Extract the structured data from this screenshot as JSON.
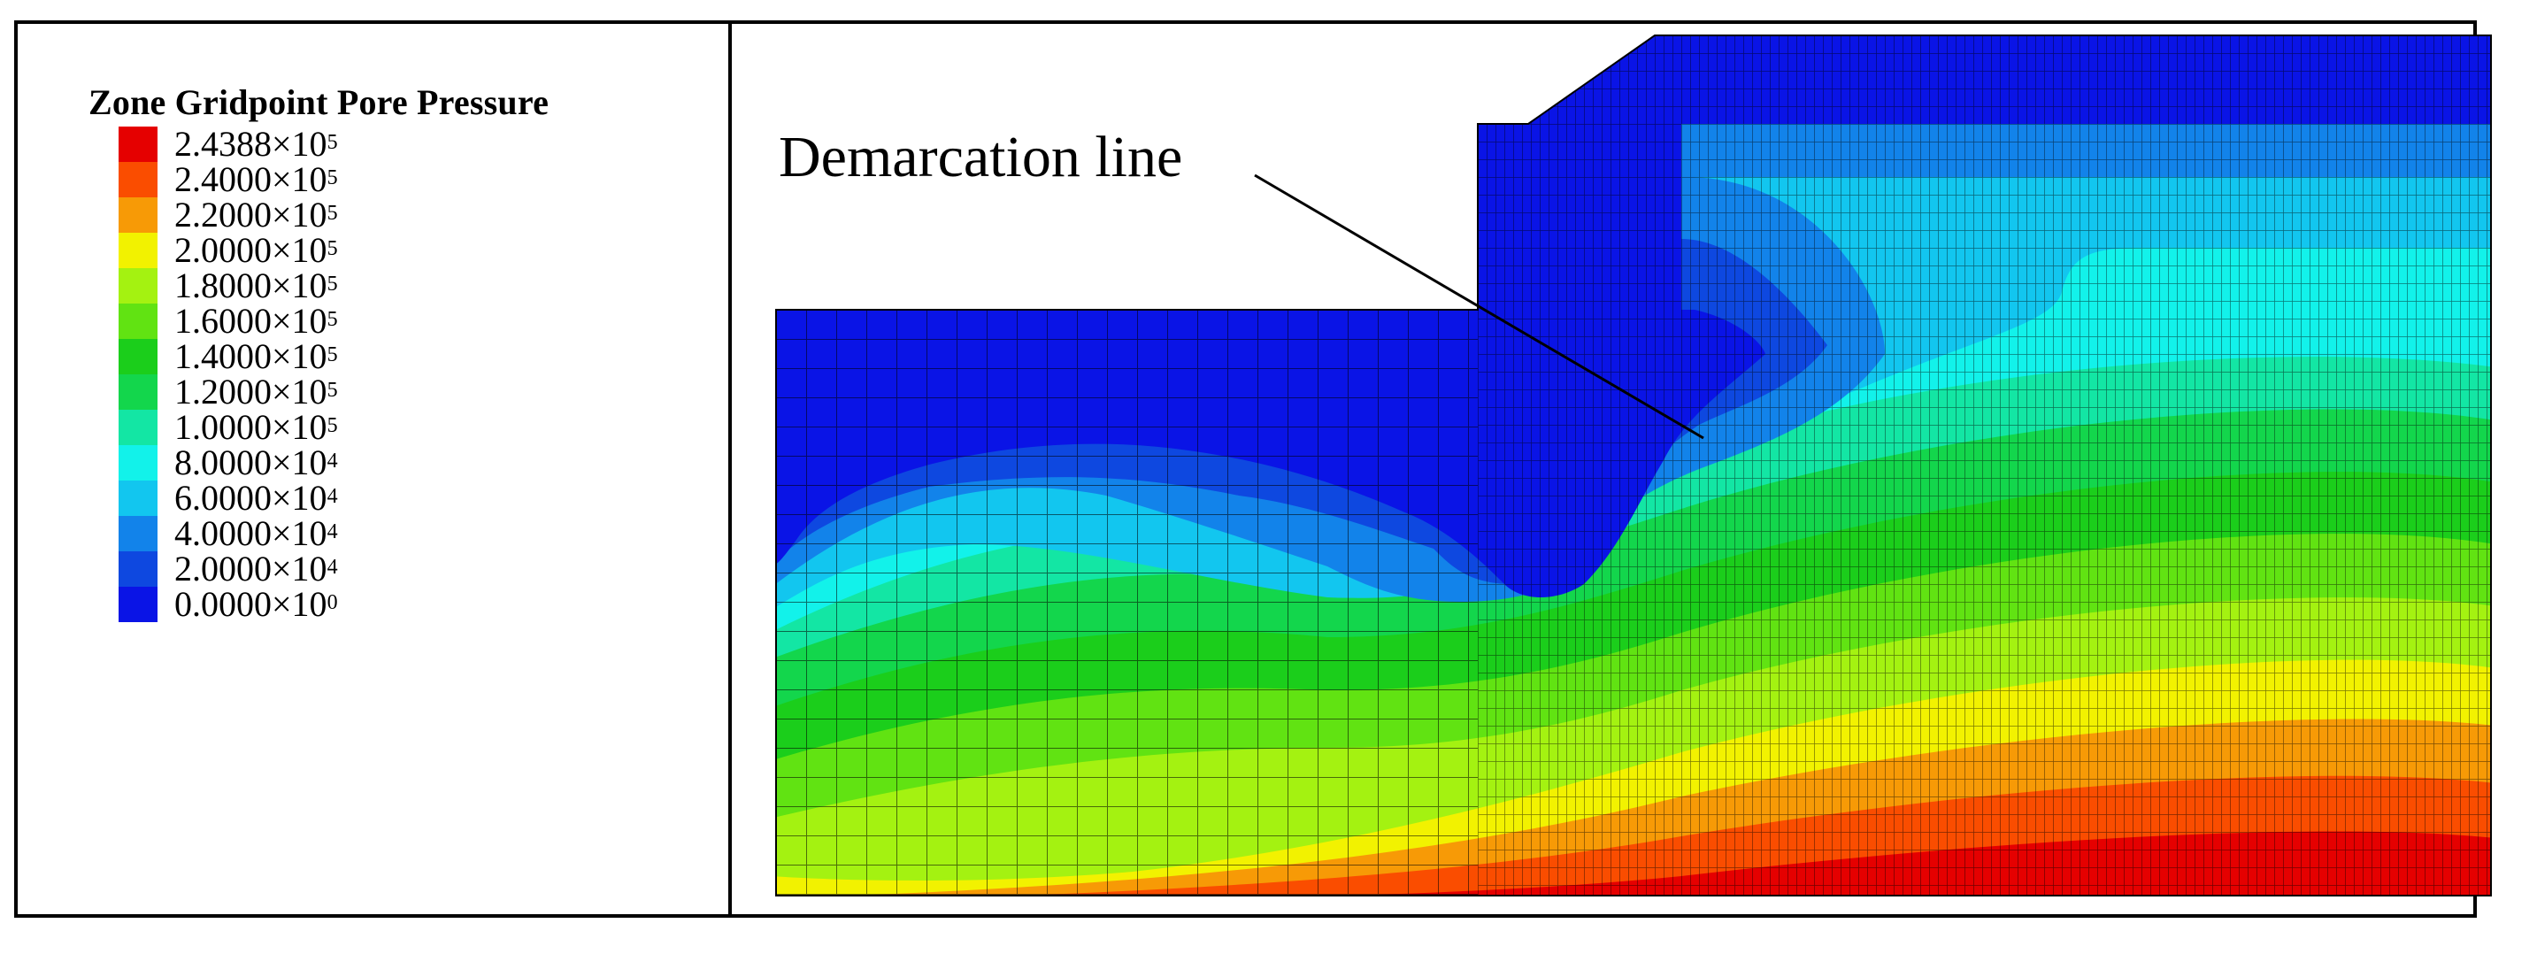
{
  "legend": {
    "title": "Zone Gridpoint Pore Pressure",
    "entries": [
      {
        "mantissa": "2.4388×10",
        "exp": "5",
        "color": "#e50000"
      },
      {
        "mantissa": "2.4000×10",
        "exp": "5",
        "color": "#fa4d00"
      },
      {
        "mantissa": "2.2000×10",
        "exp": "5",
        "color": "#f79a06"
      },
      {
        "mantissa": "2.0000×10",
        "exp": "5",
        "color": "#f2f200"
      },
      {
        "mantissa": "1.8000×10",
        "exp": "5",
        "color": "#a4f211"
      },
      {
        "mantissa": "1.6000×10",
        "exp": "5",
        "color": "#61e312"
      },
      {
        "mantissa": "1.4000×10",
        "exp": "5",
        "color": "#1bce1b"
      },
      {
        "mantissa": "1.2000×10",
        "exp": "5",
        "color": "#13d64c"
      },
      {
        "mantissa": "1.0000×10",
        "exp": "5",
        "color": "#13e6a4"
      },
      {
        "mantissa": "8.0000×10",
        "exp": "4",
        "color": "#12f2ea"
      },
      {
        "mantissa": "6.0000×10",
        "exp": "4",
        "color": "#12c6ef"
      },
      {
        "mantissa": "4.0000×10",
        "exp": "4",
        "color": "#1283ea"
      },
      {
        "mantissa": "2.0000×10",
        "exp": "4",
        "color": "#0e48e0"
      },
      {
        "mantissa": "0.0000×10",
        "exp": "0",
        "color": "#0a14e6"
      }
    ]
  },
  "annotation": {
    "label": "Demarcation line"
  }
}
